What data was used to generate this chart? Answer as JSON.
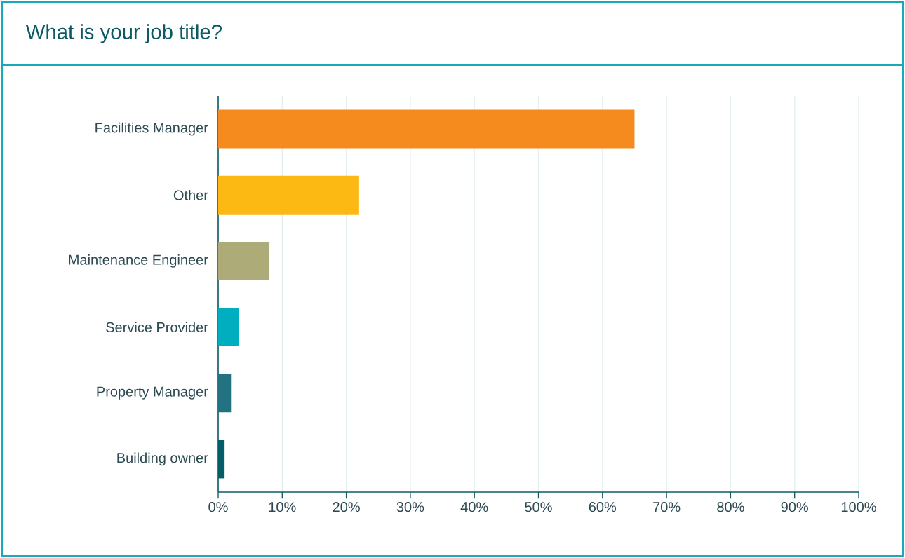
{
  "chart_data": {
    "type": "bar",
    "orientation": "horizontal",
    "title": "What is your job title?",
    "categories": [
      "Facilities Manager",
      "Other",
      "Maintenance Engineer",
      "Service Provider",
      "Property Manager",
      "Building owner"
    ],
    "values": [
      65,
      22,
      8,
      3.2,
      2,
      1
    ],
    "colors": [
      "#f58a1f",
      "#fdb913",
      "#adab78",
      "#00aec0",
      "#237282",
      "#035e6a"
    ],
    "xlim": [
      0,
      100
    ],
    "xticks": [
      {
        "value": 0,
        "label": "0%"
      },
      {
        "value": 10,
        "label": "10%"
      },
      {
        "value": 20,
        "label": "20%"
      },
      {
        "value": 30,
        "label": "30%"
      },
      {
        "value": 40,
        "label": "40%"
      },
      {
        "value": 50,
        "label": "50%"
      },
      {
        "value": 60,
        "label": "60%"
      },
      {
        "value": 70,
        "label": "70%"
      },
      {
        "value": 80,
        "label": "80%"
      },
      {
        "value": 90,
        "label": "90%"
      },
      {
        "value": 100,
        "label": "100%"
      }
    ],
    "grid": "x"
  }
}
